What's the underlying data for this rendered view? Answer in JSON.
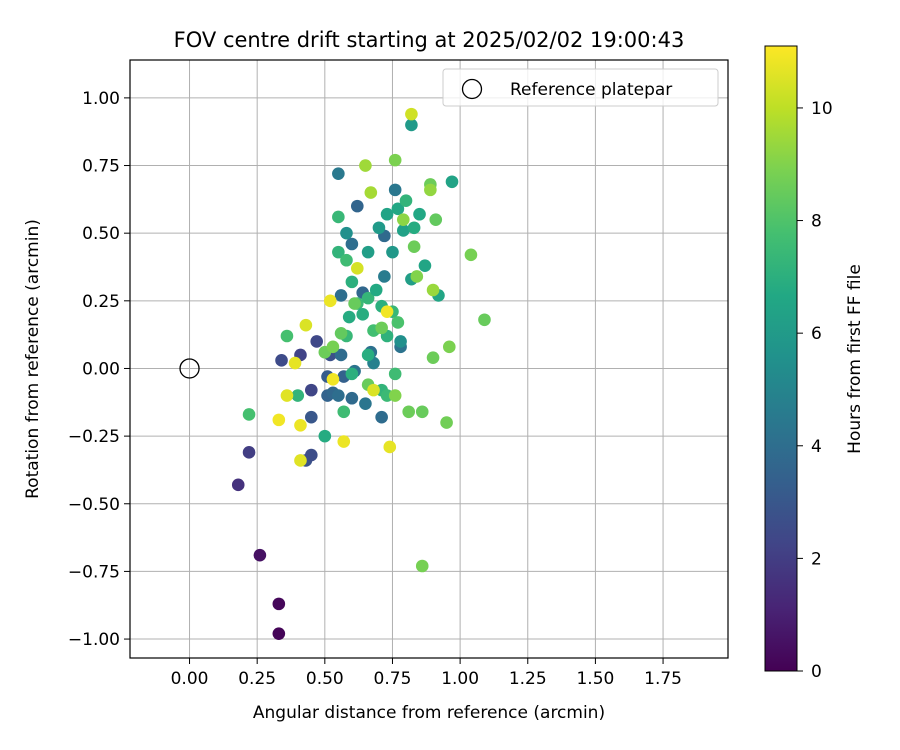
{
  "chart_data": {
    "type": "scatter",
    "title": "FOV centre drift starting at 2025/02/02 19:00:43",
    "xlabel": "Angular distance from reference (arcmin)",
    "ylabel": "Rotation from reference (arcmin)",
    "xlim": [
      -0.22,
      1.99
    ],
    "ylim": [
      -1.07,
      1.14
    ],
    "xticks": [
      0.0,
      0.25,
      0.5,
      0.75,
      1.0,
      1.25,
      1.5,
      1.75
    ],
    "xtick_labels": [
      "0.00",
      "0.25",
      "0.50",
      "0.75",
      "1.00",
      "1.25",
      "1.50",
      "1.75"
    ],
    "yticks": [
      -1.0,
      -0.75,
      -0.5,
      -0.25,
      0.0,
      0.25,
      0.5,
      0.75,
      1.0
    ],
    "ytick_labels": [
      "−1.00",
      "−0.75",
      "−0.50",
      "−0.25",
      "0.00",
      "0.25",
      "0.50",
      "0.75",
      "1.00"
    ],
    "grid": true,
    "legend": {
      "placement": "upper right",
      "label": "Reference platepar"
    },
    "reference_point": {
      "x": 0.0,
      "y": 0.0
    },
    "colorbar": {
      "label": "Hours from first FF file",
      "min": 0,
      "max": 11.1,
      "ticks": [
        0,
        2,
        4,
        6,
        8,
        10
      ],
      "tick_labels": [
        "0",
        "2",
        "4",
        "6",
        "8",
        "10"
      ],
      "colormap": "viridis"
    },
    "points": [
      {
        "x": 0.33,
        "y": -0.98,
        "c": 0.1
      },
      {
        "x": 0.33,
        "y": -0.87,
        "c": 0.2
      },
      {
        "x": 0.26,
        "y": -0.69,
        "c": 0.5
      },
      {
        "x": 0.18,
        "y": -0.43,
        "c": 1.6
      },
      {
        "x": 0.22,
        "y": -0.31,
        "c": 2.0
      },
      {
        "x": 0.34,
        "y": 0.03,
        "c": 2.5
      },
      {
        "x": 0.43,
        "y": -0.34,
        "c": 2.8
      },
      {
        "x": 0.45,
        "y": -0.32,
        "c": 2.6
      },
      {
        "x": 0.41,
        "y": 0.05,
        "c": 2.2
      },
      {
        "x": 0.45,
        "y": -0.08,
        "c": 2.3
      },
      {
        "x": 0.47,
        "y": 0.1,
        "c": 2.4
      },
      {
        "x": 0.45,
        "y": -0.18,
        "c": 3.0
      },
      {
        "x": 0.51,
        "y": -0.03,
        "c": 3.2
      },
      {
        "x": 0.52,
        "y": 0.05,
        "c": 2.7
      },
      {
        "x": 0.51,
        "y": -0.1,
        "c": 3.5
      },
      {
        "x": 0.53,
        "y": -0.09,
        "c": 3.7
      },
      {
        "x": 0.55,
        "y": -0.1,
        "c": 4.0
      },
      {
        "x": 0.57,
        "y": -0.03,
        "c": 3.4
      },
      {
        "x": 0.56,
        "y": 0.05,
        "c": 3.9
      },
      {
        "x": 0.56,
        "y": 0.27,
        "c": 4.0
      },
      {
        "x": 0.61,
        "y": -0.01,
        "c": 4.2
      },
      {
        "x": 0.6,
        "y": -0.11,
        "c": 3.8
      },
      {
        "x": 0.65,
        "y": -0.13,
        "c": 4.3
      },
      {
        "x": 0.55,
        "y": 0.72,
        "c": 4.5
      },
      {
        "x": 0.62,
        "y": 0.6,
        "c": 3.6
      },
      {
        "x": 0.6,
        "y": 0.46,
        "c": 4.0
      },
      {
        "x": 0.64,
        "y": 0.28,
        "c": 3.7
      },
      {
        "x": 0.72,
        "y": 0.49,
        "c": 3.8
      },
      {
        "x": 0.76,
        "y": 0.66,
        "c": 4.4
      },
      {
        "x": 0.72,
        "y": 0.34,
        "c": 4.6
      },
      {
        "x": 0.68,
        "y": 0.02,
        "c": 4.8
      },
      {
        "x": 0.71,
        "y": -0.18,
        "c": 3.9
      },
      {
        "x": 0.67,
        "y": 0.06,
        "c": 4.1
      },
      {
        "x": 0.78,
        "y": 0.08,
        "c": 4.2
      },
      {
        "x": 0.78,
        "y": 0.1,
        "c": 5.5
      },
      {
        "x": 0.82,
        "y": 0.9,
        "c": 6.0
      },
      {
        "x": 0.58,
        "y": 0.5,
        "c": 5.5
      },
      {
        "x": 0.66,
        "y": 0.43,
        "c": 6.2
      },
      {
        "x": 0.7,
        "y": 0.52,
        "c": 6.0
      },
      {
        "x": 0.73,
        "y": 0.57,
        "c": 6.4
      },
      {
        "x": 0.77,
        "y": 0.59,
        "c": 6.6
      },
      {
        "x": 0.79,
        "y": 0.51,
        "c": 6.3
      },
      {
        "x": 0.75,
        "y": 0.43,
        "c": 5.9
      },
      {
        "x": 0.83,
        "y": 0.52,
        "c": 6.8
      },
      {
        "x": 0.82,
        "y": 0.33,
        "c": 6.2
      },
      {
        "x": 0.87,
        "y": 0.38,
        "c": 6.5
      },
      {
        "x": 0.92,
        "y": 0.27,
        "c": 6.5
      },
      {
        "x": 0.97,
        "y": 0.69,
        "c": 6.4
      },
      {
        "x": 0.85,
        "y": 0.57,
        "c": 6.6
      },
      {
        "x": 0.8,
        "y": 0.62,
        "c": 7.2
      },
      {
        "x": 0.55,
        "y": 0.56,
        "c": 7.4
      },
      {
        "x": 0.55,
        "y": 0.43,
        "c": 7.2
      },
      {
        "x": 0.58,
        "y": 0.4,
        "c": 7.6
      },
      {
        "x": 0.6,
        "y": 0.32,
        "c": 7.0
      },
      {
        "x": 0.59,
        "y": 0.19,
        "c": 6.8
      },
      {
        "x": 0.62,
        "y": 0.24,
        "c": 7.5
      },
      {
        "x": 0.64,
        "y": 0.2,
        "c": 6.9
      },
      {
        "x": 0.66,
        "y": 0.26,
        "c": 7.3
      },
      {
        "x": 0.69,
        "y": 0.29,
        "c": 6.7
      },
      {
        "x": 0.71,
        "y": 0.23,
        "c": 7.0
      },
      {
        "x": 0.68,
        "y": 0.14,
        "c": 7.7
      },
      {
        "x": 0.73,
        "y": 0.12,
        "c": 7.1
      },
      {
        "x": 0.75,
        "y": 0.21,
        "c": 7.4
      },
      {
        "x": 0.77,
        "y": 0.17,
        "c": 7.9
      },
      {
        "x": 0.58,
        "y": 0.12,
        "c": 7.4
      },
      {
        "x": 0.6,
        "y": -0.02,
        "c": 7.0
      },
      {
        "x": 0.57,
        "y": -0.16,
        "c": 7.6
      },
      {
        "x": 0.66,
        "y": 0.05,
        "c": 6.9
      },
      {
        "x": 0.71,
        "y": -0.08,
        "c": 7.2
      },
      {
        "x": 0.73,
        "y": -0.1,
        "c": 7.5
      },
      {
        "x": 0.76,
        "y": -0.02,
        "c": 7.6
      },
      {
        "x": 0.4,
        "y": -0.1,
        "c": 7.2
      },
      {
        "x": 0.5,
        "y": -0.25,
        "c": 6.8
      },
      {
        "x": 0.22,
        "y": -0.17,
        "c": 7.8
      },
      {
        "x": 0.36,
        "y": 0.12,
        "c": 7.8
      },
      {
        "x": 0.5,
        "y": 0.06,
        "c": 8.6
      },
      {
        "x": 0.53,
        "y": 0.08,
        "c": 8.8
      },
      {
        "x": 0.56,
        "y": 0.13,
        "c": 8.4
      },
      {
        "x": 0.61,
        "y": 0.24,
        "c": 8.5
      },
      {
        "x": 0.65,
        "y": 0.75,
        "c": 9.5
      },
      {
        "x": 0.67,
        "y": 0.65,
        "c": 9.6
      },
      {
        "x": 0.76,
        "y": 0.77,
        "c": 8.9
      },
      {
        "x": 0.79,
        "y": 0.55,
        "c": 9.2
      },
      {
        "x": 0.83,
        "y": 0.45,
        "c": 8.6
      },
      {
        "x": 0.89,
        "y": 0.68,
        "c": 8.6
      },
      {
        "x": 0.89,
        "y": 0.66,
        "c": 9.3
      },
      {
        "x": 0.91,
        "y": 0.55,
        "c": 8.4
      },
      {
        "x": 1.04,
        "y": 0.42,
        "c": 8.8
      },
      {
        "x": 0.84,
        "y": 0.34,
        "c": 9.0
      },
      {
        "x": 0.9,
        "y": 0.29,
        "c": 9.4
      },
      {
        "x": 1.09,
        "y": 0.18,
        "c": 8.5
      },
      {
        "x": 0.96,
        "y": 0.08,
        "c": 8.9
      },
      {
        "x": 0.9,
        "y": 0.04,
        "c": 8.6
      },
      {
        "x": 0.76,
        "y": -0.1,
        "c": 9.0
      },
      {
        "x": 0.81,
        "y": -0.16,
        "c": 8.6
      },
      {
        "x": 0.86,
        "y": -0.16,
        "c": 8.5
      },
      {
        "x": 0.95,
        "y": -0.2,
        "c": 8.7
      },
      {
        "x": 0.86,
        "y": -0.73,
        "c": 8.8
      },
      {
        "x": 0.66,
        "y": -0.06,
        "c": 8.5
      },
      {
        "x": 0.71,
        "y": 0.15,
        "c": 8.6
      },
      {
        "x": 0.62,
        "y": 0.37,
        "c": 10.4
      },
      {
        "x": 0.52,
        "y": 0.25,
        "c": 10.8
      },
      {
        "x": 0.43,
        "y": 0.16,
        "c": 10.5
      },
      {
        "x": 0.39,
        "y": 0.02,
        "c": 10.7
      },
      {
        "x": 0.36,
        "y": -0.1,
        "c": 10.6
      },
      {
        "x": 0.33,
        "y": -0.19,
        "c": 10.9
      },
      {
        "x": 0.41,
        "y": -0.21,
        "c": 10.8
      },
      {
        "x": 0.41,
        "y": -0.34,
        "c": 10.6
      },
      {
        "x": 0.53,
        "y": -0.04,
        "c": 10.9
      },
      {
        "x": 0.57,
        "y": -0.27,
        "c": 10.8
      },
      {
        "x": 0.74,
        "y": -0.29,
        "c": 10.7
      },
      {
        "x": 0.73,
        "y": 0.21,
        "c": 10.9
      },
      {
        "x": 0.68,
        "y": -0.08,
        "c": 10.5
      },
      {
        "x": 0.82,
        "y": 0.94,
        "c": 10.3
      }
    ]
  }
}
